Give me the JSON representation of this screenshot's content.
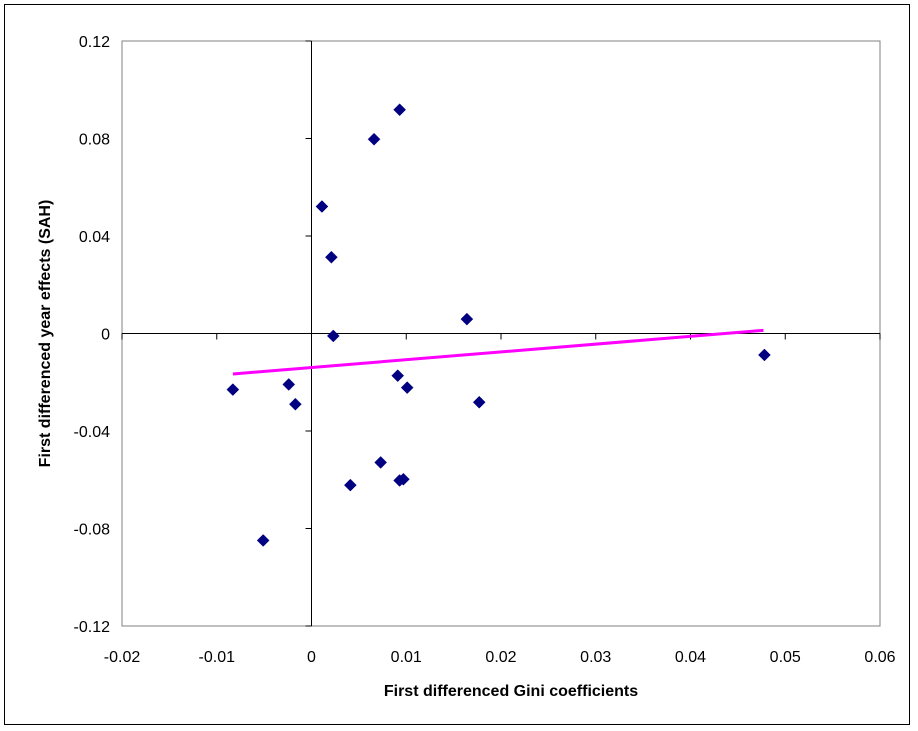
{
  "chart_data": {
    "type": "scatter",
    "xlabel": "First differenced Gini coefficients",
    "ylabel": "First differenced year effects (SAH)",
    "xlim": [
      -0.02,
      0.06
    ],
    "ylim": [
      -0.12,
      0.12
    ],
    "xticks": [
      -0.02,
      -0.01,
      0,
      0.01,
      0.02,
      0.03,
      0.04,
      0.05,
      0.06
    ],
    "yticks": [
      0.12,
      0.08,
      0.04,
      0,
      -0.04,
      -0.08,
      -0.12
    ],
    "xtick_labels": [
      "-0.02",
      "-0.01",
      "0",
      "0.01",
      "0.02",
      "0.03",
      "0.04",
      "0.05",
      "0.06"
    ],
    "ytick_labels": [
      "0.12",
      "0.08",
      "0.04",
      "0",
      "-0.04",
      "-0.08",
      "-0.12"
    ],
    "grid": false,
    "legend": "none",
    "series": [
      {
        "marker": "diamond",
        "color": "#000080",
        "points": [
          [
            0.0093,
            0.0918
          ],
          [
            0.0066,
            0.0797
          ],
          [
            0.0011,
            0.0521
          ],
          [
            0.0021,
            0.0313
          ],
          [
            0.0023,
            -0.001
          ],
          [
            0.0164,
            0.0059
          ],
          [
            0.0478,
            -0.0088
          ],
          [
            -0.0083,
            -0.023
          ],
          [
            -0.0024,
            -0.0209
          ],
          [
            -0.0017,
            -0.029
          ],
          [
            0.0091,
            -0.0173
          ],
          [
            0.0101,
            -0.0222
          ],
          [
            0.0177,
            -0.0282
          ],
          [
            0.0073,
            -0.0529
          ],
          [
            0.0041,
            -0.0622
          ],
          [
            0.0093,
            -0.0603
          ],
          [
            0.0097,
            -0.0598
          ],
          [
            -0.0051,
            -0.0849
          ]
        ]
      }
    ],
    "trendline": {
      "type": "linear",
      "color": "#ff00ff",
      "points": [
        [
          -0.0083,
          -0.0166
        ],
        [
          0.0477,
          0.0013
        ]
      ]
    }
  }
}
